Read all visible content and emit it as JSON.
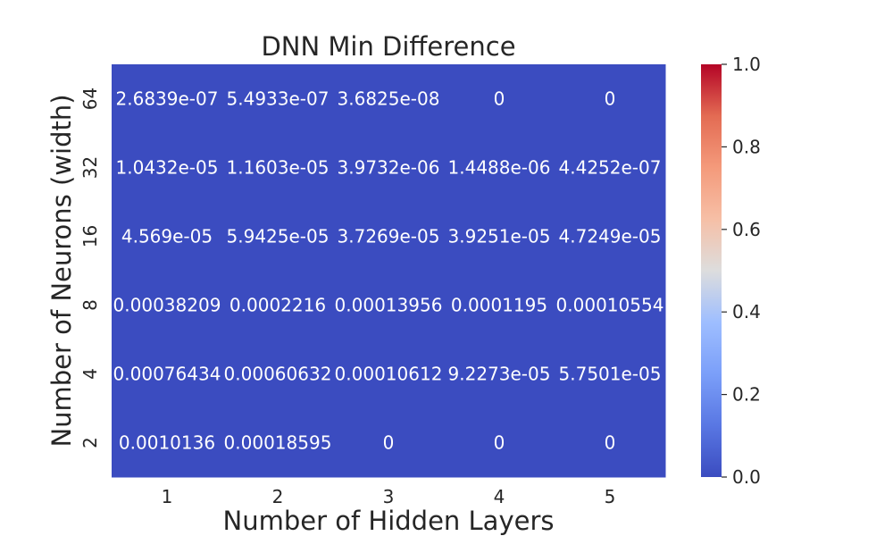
{
  "chart_data": {
    "type": "heatmap",
    "title": "DNN Min Difference",
    "xlabel": "Number of Hidden Layers",
    "ylabel": "Number of Neurons (width)",
    "x_categories": [
      "1",
      "2",
      "3",
      "4",
      "5"
    ],
    "y_categories": [
      "64",
      "32",
      "16",
      "8",
      "4",
      "2"
    ],
    "values": [
      [
        2.6839e-07,
        5.4933e-07,
        3.6825e-08,
        0,
        0
      ],
      [
        1.0432e-05,
        1.1603e-05,
        3.9732e-06,
        1.4488e-06,
        4.4252e-07
      ],
      [
        4.569e-05,
        5.9425e-05,
        3.7269e-05,
        3.9251e-05,
        4.7249e-05
      ],
      [
        0.00038209,
        0.0002216,
        0.00013956,
        0.0001195,
        0.00010554
      ],
      [
        0.00076434,
        0.00060632,
        0.00010612,
        9.2273e-05,
        5.7501e-05
      ],
      [
        0.0010136,
        0.00018595,
        0,
        0,
        0
      ]
    ],
    "labels": [
      [
        "2.6839e-07",
        "5.4933e-07",
        "3.6825e-08",
        "0",
        "0"
      ],
      [
        "1.0432e-05",
        "1.1603e-05",
        "3.9732e-06",
        "1.4488e-06",
        "4.4252e-07"
      ],
      [
        "4.569e-05",
        "5.9425e-05",
        "3.7269e-05",
        "3.9251e-05",
        "4.7249e-05"
      ],
      [
        "0.00038209",
        "0.0002216",
        "0.00013956",
        "0.0001195",
        "0.00010554"
      ],
      [
        "0.00076434",
        "0.00060632",
        "0.00010612",
        "9.2273e-05",
        "5.7501e-05"
      ],
      [
        "0.0010136",
        "0.00018595",
        "0",
        "0",
        "0"
      ]
    ],
    "colorbar": {
      "min": 0.0,
      "max": 1.0,
      "ticks": [
        "0.0",
        "0.2",
        "0.4",
        "0.6",
        "0.8",
        "1.0"
      ],
      "colormap": "coolwarm",
      "low_color": "#3b4cc0",
      "mid_color": "#dddddd",
      "high_color": "#b40426"
    },
    "grid": false
  }
}
